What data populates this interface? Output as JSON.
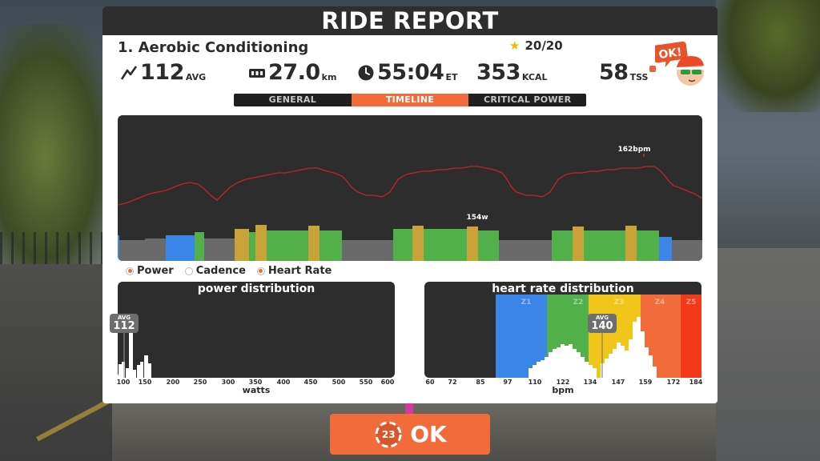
{
  "header": {
    "title": "RIDE REPORT"
  },
  "workout": {
    "name": "1. Aerobic Conditioning",
    "stars": "20/20"
  },
  "stats": {
    "power": {
      "value": "112",
      "unit": "AVG"
    },
    "distance": {
      "value": "27.0",
      "unit": "km"
    },
    "time": {
      "value": "55:04",
      "unit": "ET"
    },
    "calories": {
      "value": "353",
      "unit": "KCAL"
    },
    "tss": {
      "value": "58",
      "unit": "TSS"
    }
  },
  "avatar": {
    "bubble": "OK!"
  },
  "tabs": [
    {
      "label": "GENERAL",
      "active": false
    },
    {
      "label": "TIMELINE",
      "active": true
    },
    {
      "label": "CRITICAL POWER",
      "active": false
    }
  ],
  "timeline": {
    "hr_peak_label": "162bpm",
    "power_peak_label": "154w"
  },
  "legend": [
    {
      "label": "Power",
      "on": true
    },
    {
      "label": "Cadence",
      "on": false
    },
    {
      "label": "Heart Rate",
      "on": true
    }
  ],
  "power_distribution": {
    "title": "power distribution",
    "avg_label": "AVG",
    "avg_value": "112",
    "x_ticks": [
      "100",
      "150",
      "200",
      "250",
      "300",
      "350",
      "400",
      "450",
      "500",
      "550",
      "600"
    ],
    "unit": "watts"
  },
  "hr_distribution": {
    "title": "heart rate distribution",
    "avg_label": "AVG",
    "avg_value": "140",
    "x_ticks": [
      "60",
      "72",
      "85",
      "97",
      "110",
      "122",
      "134",
      "147",
      "159",
      "172",
      "184"
    ],
    "unit": "bpm",
    "zones": [
      "Z1",
      "Z2",
      "Z3",
      "Z4",
      "Z5"
    ]
  },
  "colors": {
    "accent": "#f26b3a",
    "panel_dark": "#2d2d2d",
    "z1": "#3a86e8",
    "z2": "#52b04a",
    "z3": "#f2c51a",
    "z4": "#f26b3a",
    "z5": "#f23a1a",
    "hr_line": "#b8282a"
  },
  "ok_button": {
    "label": "OK",
    "badge": "23"
  }
}
